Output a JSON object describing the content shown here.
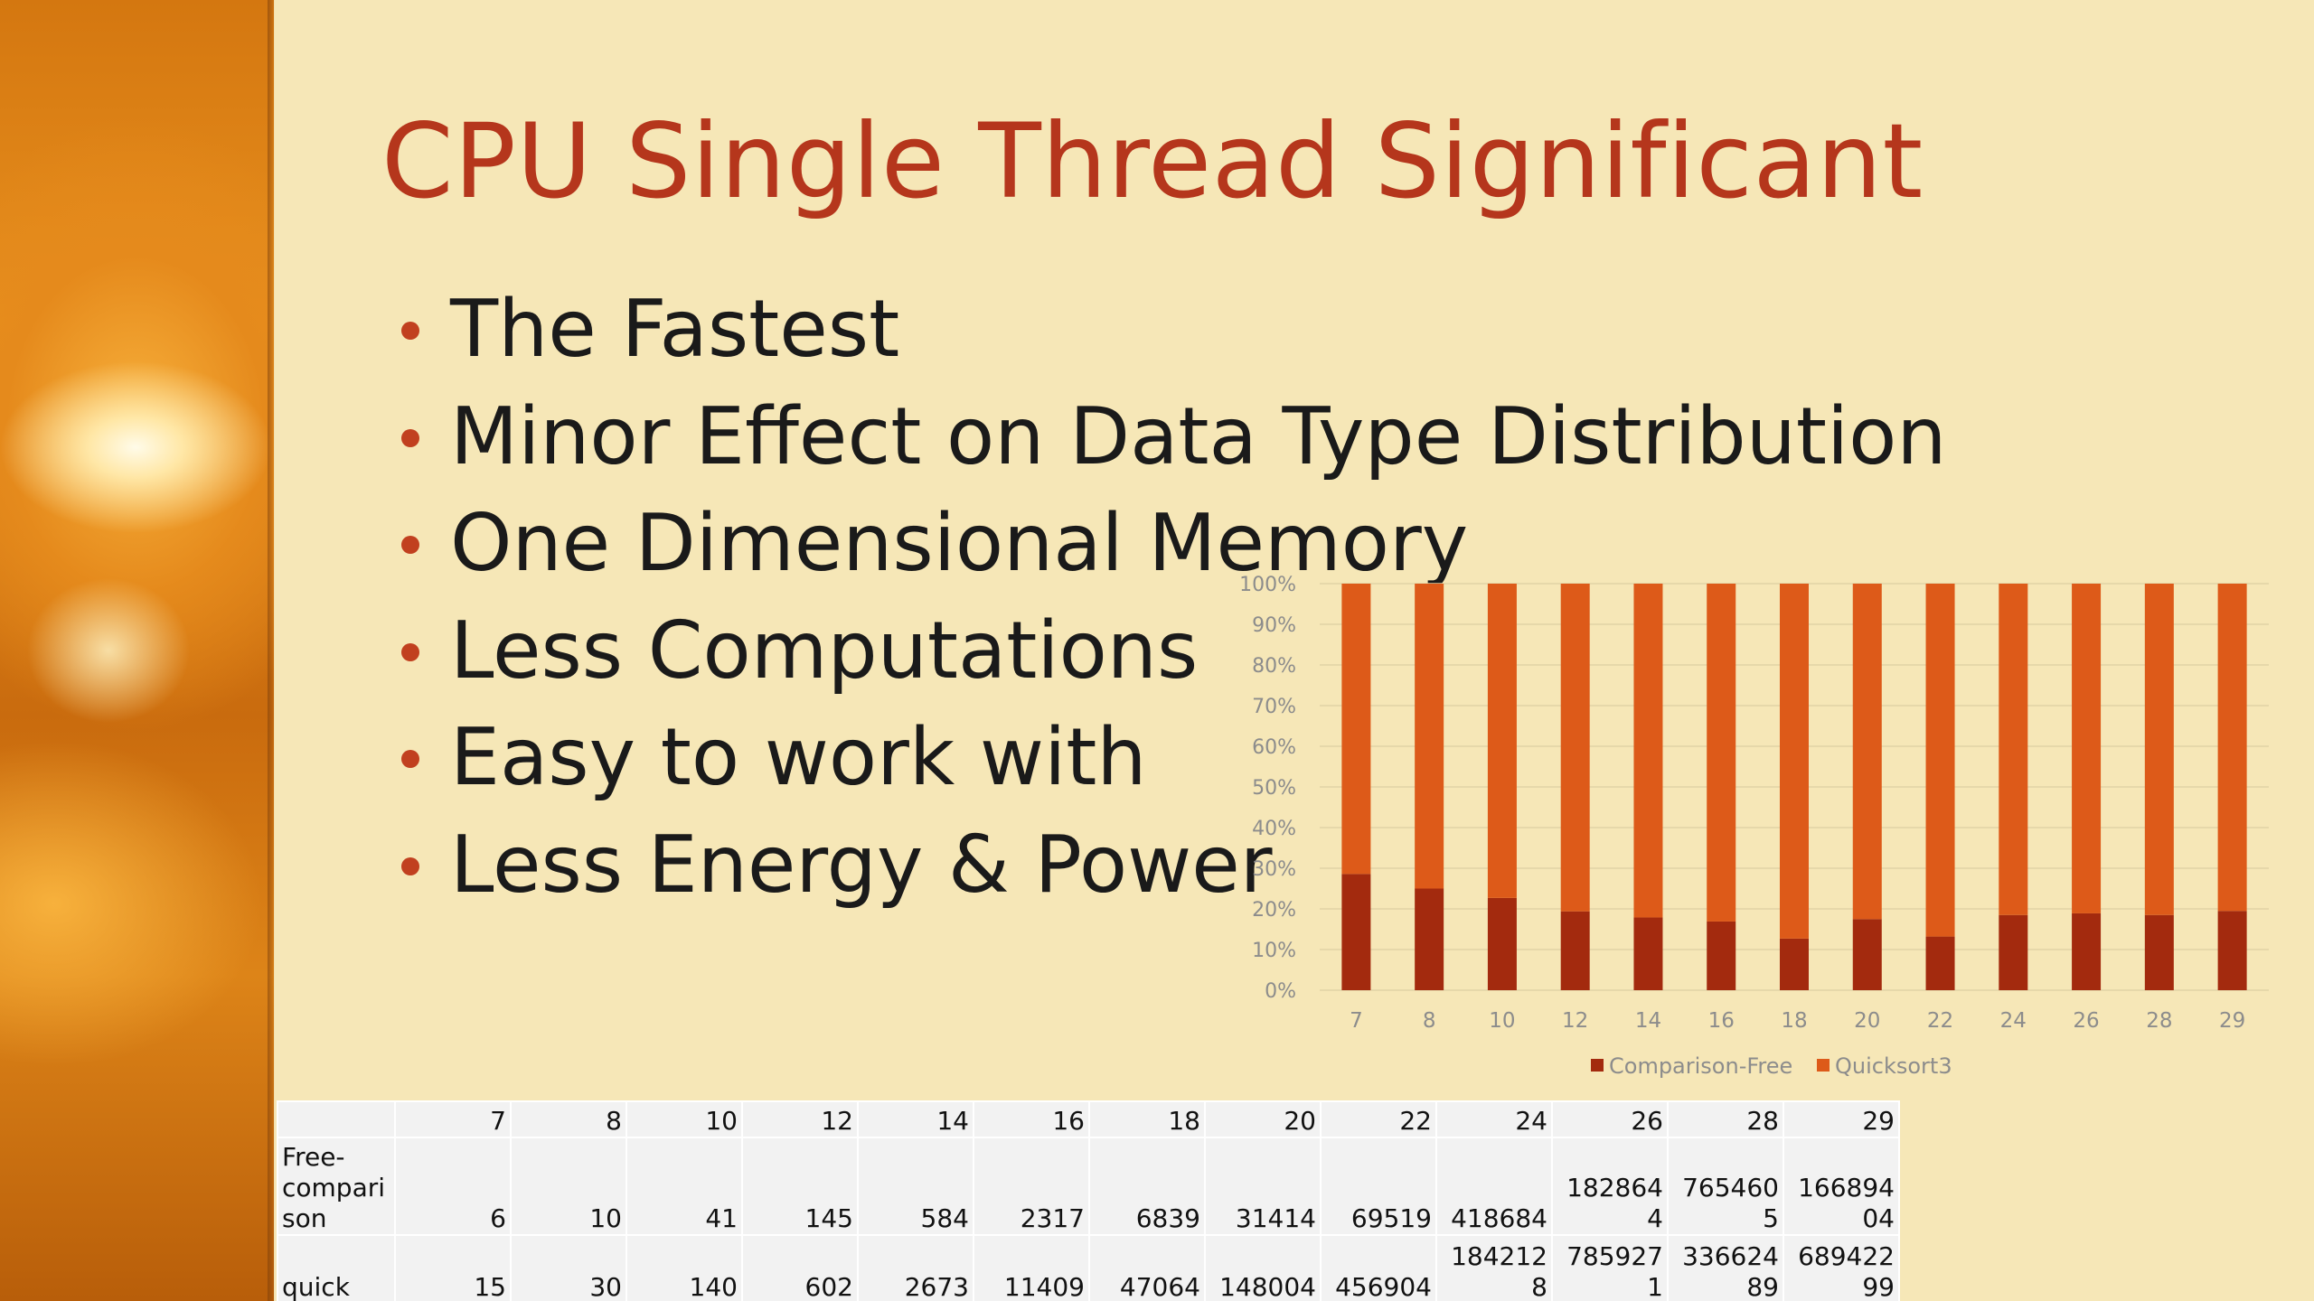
{
  "slide": {
    "title": "CPU Single Thread Significant",
    "bullets": [
      "The Fastest",
      "Minor Effect on Data Type Distribution",
      "One Dimensional Memory",
      "Less Computations",
      "Easy to work with",
      "Less Energy & Power"
    ]
  },
  "colors": {
    "comparison_free": "#a32a0e",
    "quicksort3": "#dd5a19",
    "title": "#b5361c",
    "background": "#f6e7b7"
  },
  "chart_data": {
    "type": "bar",
    "stacking": "percent",
    "categories": [
      "7",
      "8",
      "10",
      "12",
      "14",
      "16",
      "18",
      "20",
      "22",
      "24",
      "26",
      "28",
      "29"
    ],
    "series": [
      {
        "name": "Comparison-Free",
        "values": [
          28.6,
          25.0,
          22.7,
          19.4,
          17.9,
          16.9,
          12.7,
          17.5,
          13.2,
          18.5,
          18.9,
          18.5,
          19.5
        ]
      },
      {
        "name": "Quicksort3",
        "values": [
          71.4,
          75.0,
          77.3,
          80.6,
          82.1,
          83.1,
          87.3,
          82.5,
          86.8,
          81.5,
          81.1,
          81.5,
          80.5
        ]
      }
    ],
    "ylim": [
      0,
      100
    ],
    "yticks": [
      "0%",
      "10%",
      "20%",
      "30%",
      "40%",
      "50%",
      "60%",
      "70%",
      "80%",
      "90%",
      "100%"
    ],
    "grid": true,
    "legend": "bottom"
  },
  "table": {
    "header": [
      "",
      "7",
      "8",
      "10",
      "12",
      "14",
      "16",
      "18",
      "20",
      "22",
      "24",
      "26",
      "28",
      "29"
    ],
    "rows": [
      {
        "label": "Free-compari son",
        "values": [
          "6",
          "10",
          "41",
          "145",
          "584",
          "2317",
          "6839",
          "31414",
          "69519",
          "418684",
          "1828644",
          "7654605",
          "16689404"
        ]
      },
      {
        "label": "quick",
        "values": [
          "15",
          "30",
          "140",
          "602",
          "2673",
          "11409",
          "47064",
          "148004",
          "456904",
          "1842128",
          "7859271",
          "33662489",
          "68942299"
        ]
      }
    ]
  }
}
